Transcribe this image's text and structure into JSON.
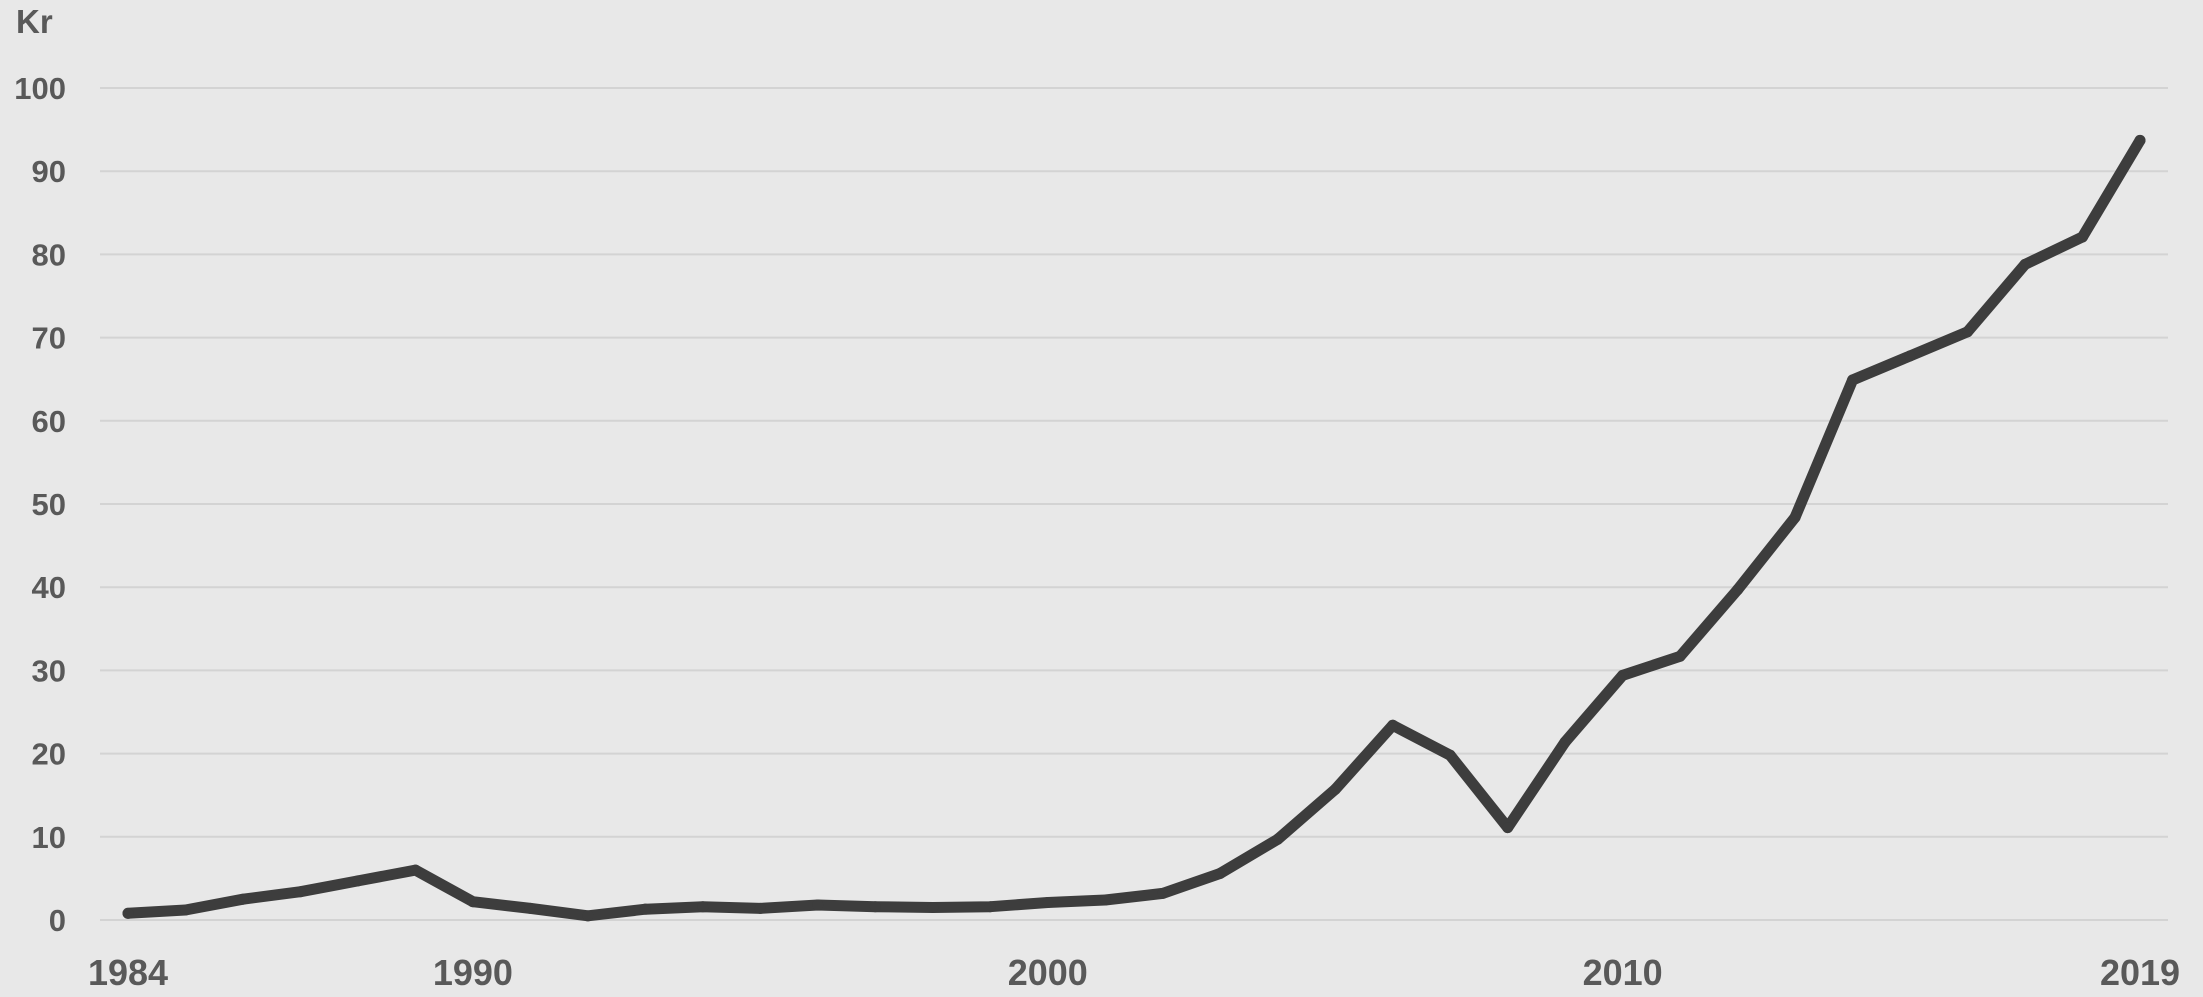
{
  "colors": {
    "background": "#e8e8e8",
    "line": "#3d3d3d",
    "gridline": "#d3d3d3",
    "text": "#595959"
  },
  "chart_data": {
    "type": "line",
    "title": "",
    "xlabel": "",
    "ylabel": "Kr",
    "xlim": [
      1984,
      2019
    ],
    "ylim": [
      0,
      100
    ],
    "grid": true,
    "legend": "none",
    "x_ticks": [
      1984,
      1990,
      2000,
      2010,
      2019
    ],
    "y_ticks": [
      0,
      10,
      20,
      30,
      40,
      50,
      60,
      70,
      80,
      90,
      100
    ],
    "series": [
      {
        "x": [
          1984,
          1985,
          1986,
          1987,
          1988,
          1989,
          1990,
          1991,
          1992,
          1993,
          1994,
          1995,
          1996,
          1997,
          1998,
          1999,
          2000,
          2001,
          2002,
          2003,
          2004,
          2005,
          2006,
          2007,
          2008,
          2009,
          2010,
          2011,
          2012,
          2013,
          2014,
          2015,
          2016,
          2017,
          2018,
          2019
        ],
        "values": [
          0.8,
          1.2,
          2.5,
          3.4,
          4.7,
          6.0,
          2.2,
          1.4,
          0.5,
          1.3,
          1.6,
          1.4,
          1.8,
          1.6,
          1.5,
          1.6,
          2.1,
          2.4,
          3.2,
          5.6,
          9.7,
          15.7,
          23.4,
          19.8,
          11.1,
          21.4,
          29.4,
          31.7,
          39.7,
          48.4,
          64.9,
          67.8,
          70.7,
          78.8,
          82.1,
          93.7
        ]
      }
    ]
  }
}
